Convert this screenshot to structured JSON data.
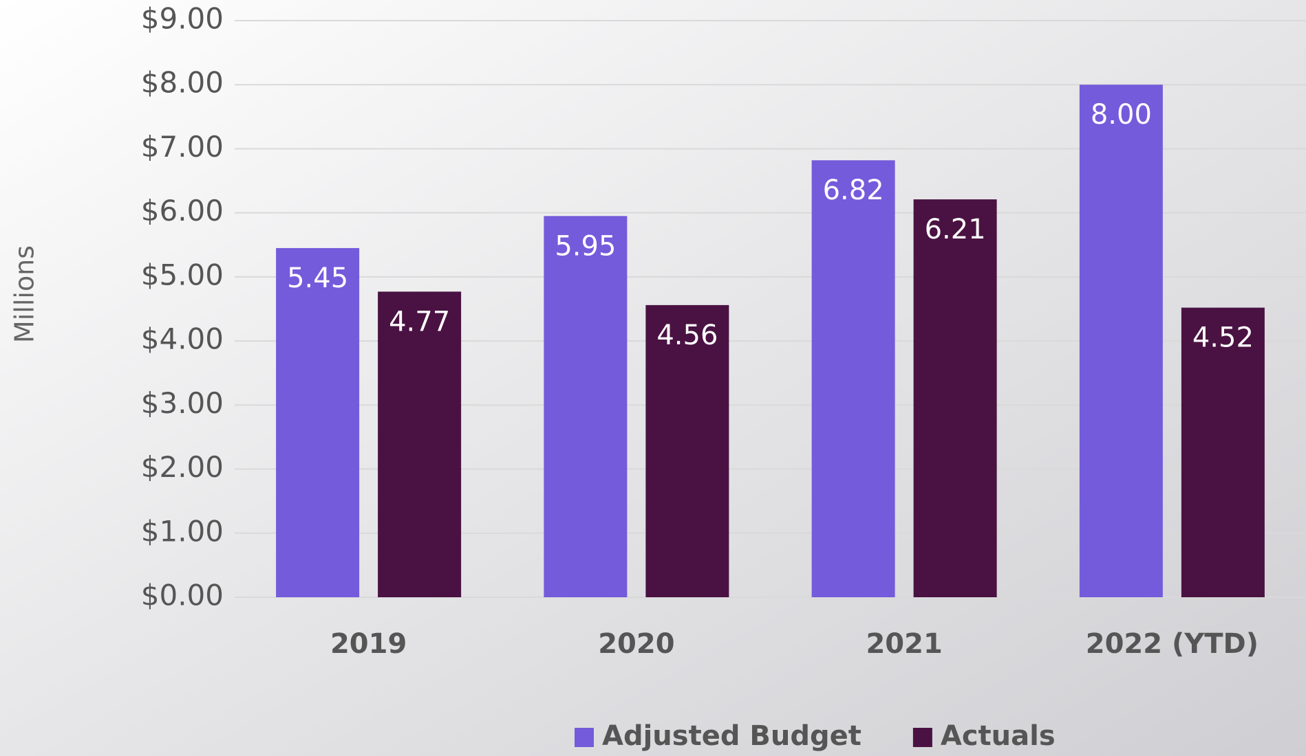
{
  "chart_data": {
    "type": "bar",
    "y_label": "Millions",
    "categories": [
      "2019",
      "2020",
      "2021",
      "2022 (YTD)"
    ],
    "series": [
      {
        "name": "Adjusted Budget",
        "color": "#745bdb",
        "values": [
          5.45,
          5.95,
          6.82,
          8.0
        ],
        "value_labels": [
          "5.45",
          "5.95",
          "6.82",
          "8.00"
        ]
      },
      {
        "name": "Actuals",
        "color": "#4a1242",
        "values": [
          4.77,
          4.56,
          6.21,
          4.52
        ],
        "value_labels": [
          "4.77",
          "4.56",
          "6.21",
          "4.52"
        ]
      }
    ],
    "ylim": [
      0,
      9
    ],
    "yticks": [
      {
        "value": 0,
        "label": "$0.00"
      },
      {
        "value": 1,
        "label": "$1.00"
      },
      {
        "value": 2,
        "label": "$2.00"
      },
      {
        "value": 3,
        "label": "$3.00"
      },
      {
        "value": 4,
        "label": "$4.00"
      },
      {
        "value": 5,
        "label": "$5.00"
      },
      {
        "value": 6,
        "label": "$6.00"
      },
      {
        "value": 7,
        "label": "$7.00"
      },
      {
        "value": 8,
        "label": "$8.00"
      },
      {
        "value": 9,
        "label": "$9.00"
      }
    ],
    "grid": true,
    "legend": "bottom"
  }
}
